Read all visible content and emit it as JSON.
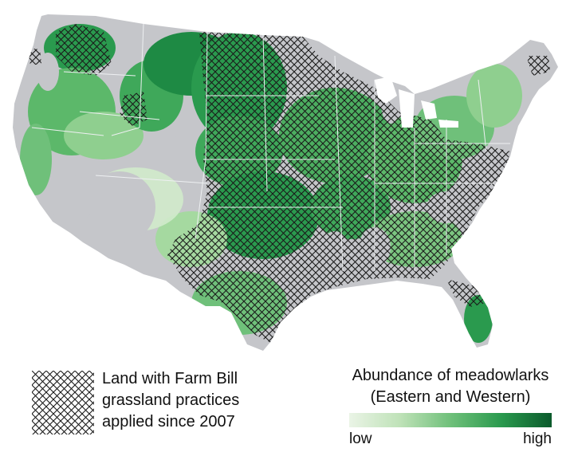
{
  "map": {
    "colors": {
      "land": "#c5c6ca",
      "border": "#eef0f2",
      "green_light": "#e3f1e0",
      "green_mid": "#5cb86a",
      "green_dark": "#0e6b34",
      "hatch": "#1a1a1a"
    },
    "icon": "us-states-map"
  },
  "legend": {
    "hatch_text": [
      "Land with Farm Bill",
      "grassland practices",
      "applied since 2007"
    ],
    "abundance_title": [
      "Abundance of meadowlarks",
      "(Eastern and Western)"
    ],
    "ramp_low": "low",
    "ramp_high": "high",
    "ramp_colors": [
      "#eaf4e6",
      "#bfe2b8",
      "#6fc07a",
      "#2a9a4e",
      "#0b5a2c"
    ]
  }
}
